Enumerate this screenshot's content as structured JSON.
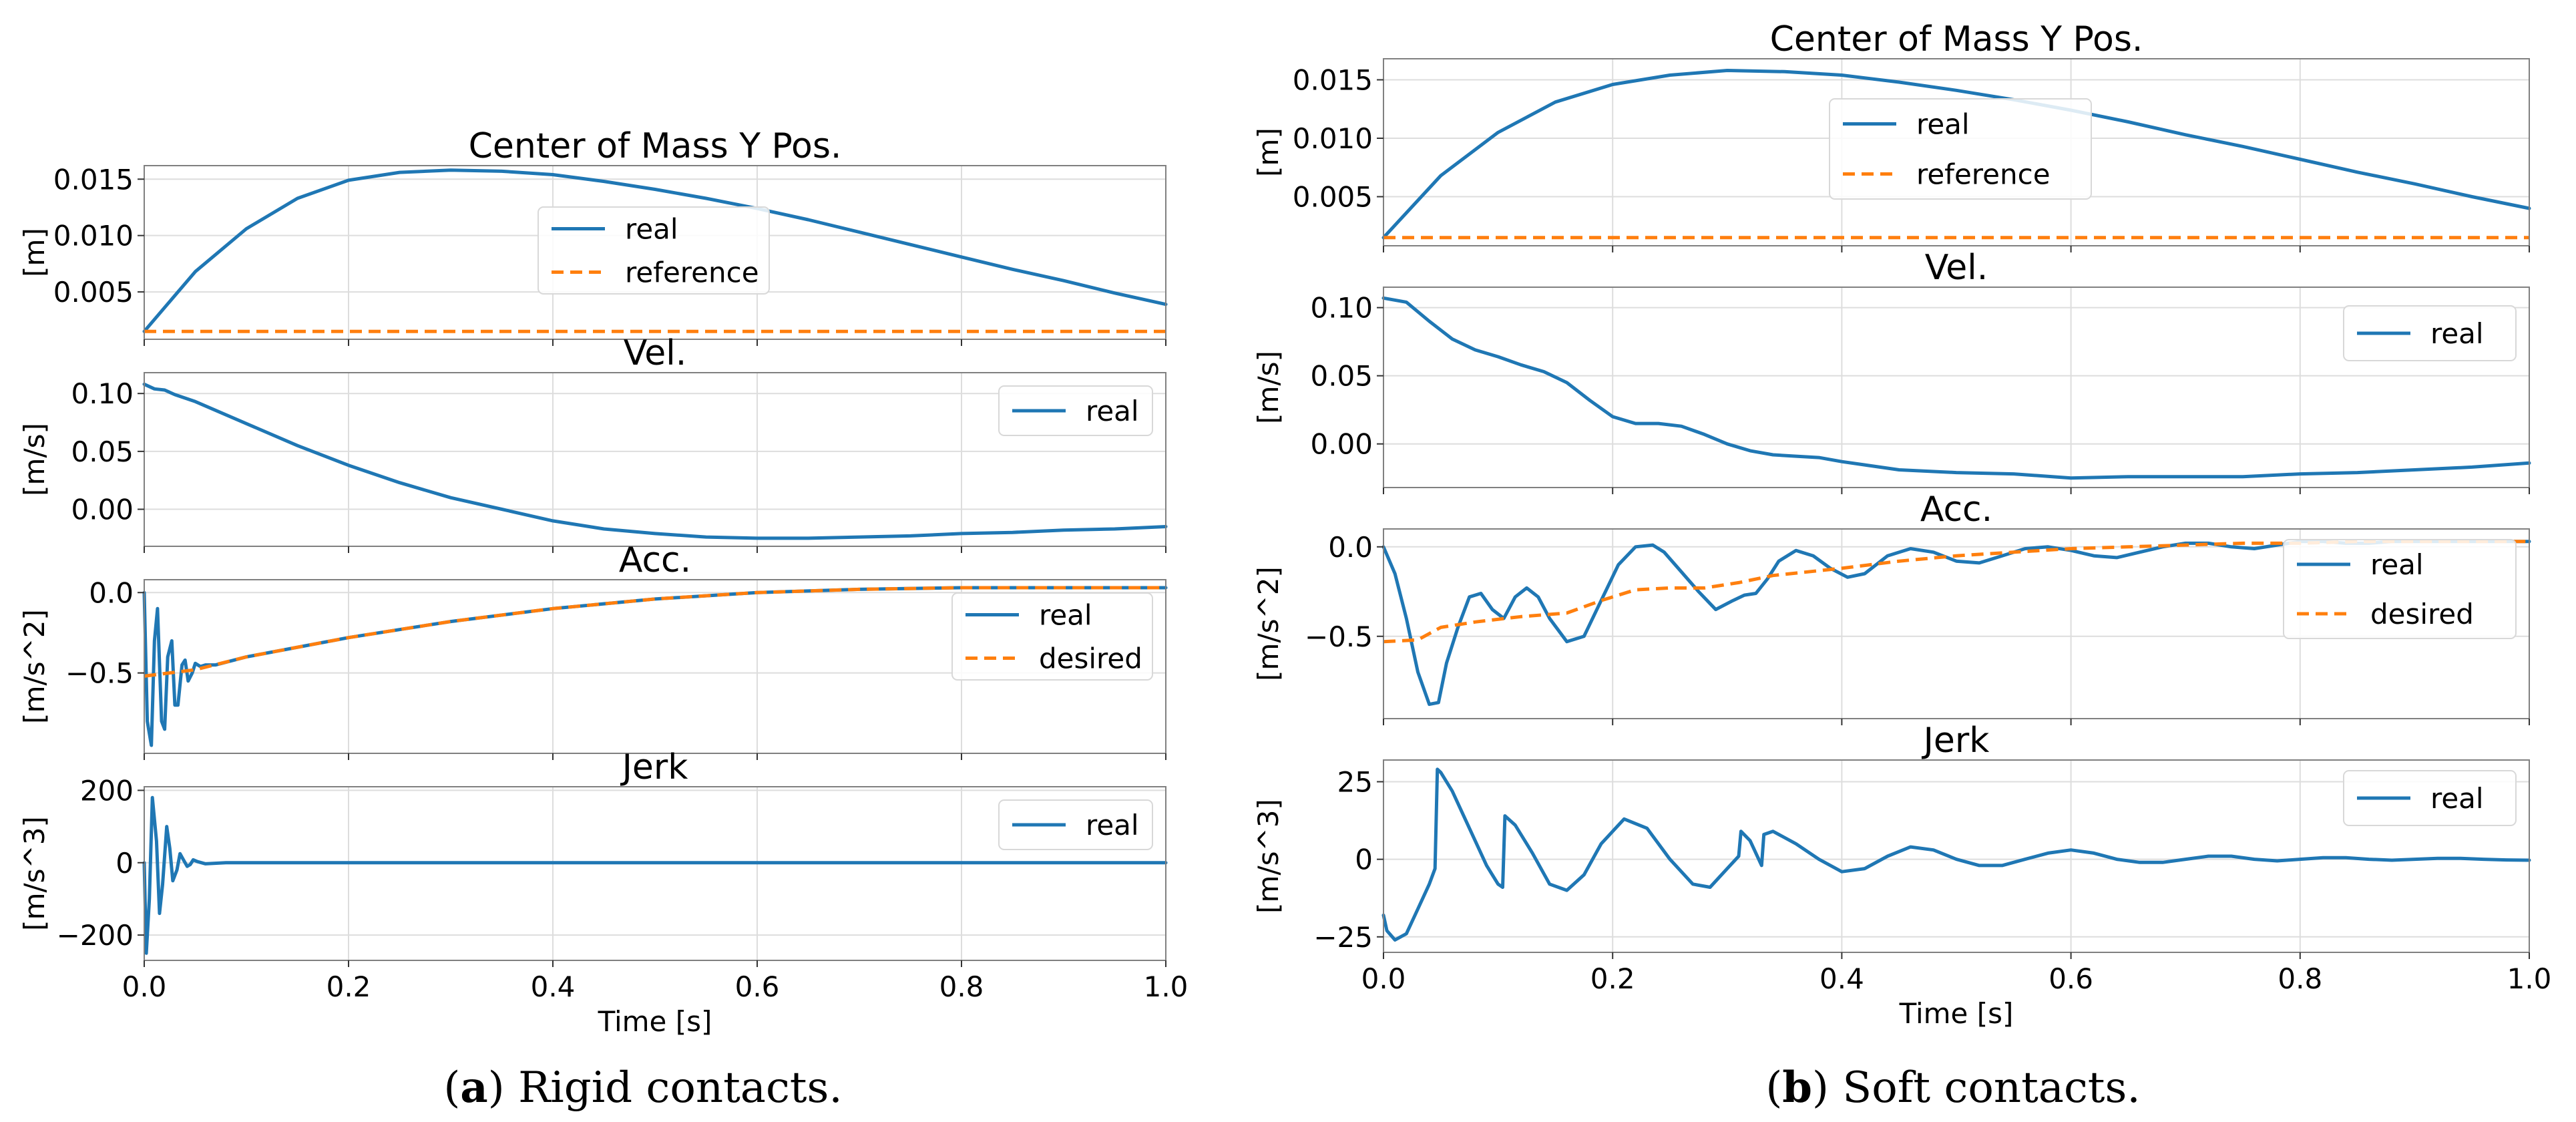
{
  "figure": {
    "caption_a_letter": "a",
    "caption_a_text": " Rigid contacts.",
    "caption_b_letter": "b",
    "caption_b_text": " Soft contacts."
  },
  "colors": {
    "real": "#1f77b4",
    "reference": "#ff7f0e",
    "grid": "#dddddd",
    "axis": "#808080"
  },
  "chart_data": [
    {
      "id": "a-pos",
      "type": "line",
      "title": "Center of Mass Y Pos.",
      "ylabel": "[m]",
      "xlabel": "",
      "xlim": [
        0,
        1.0
      ],
      "ylim": [
        0.0008,
        0.0162
      ],
      "yticks": [
        0.005,
        0.01,
        0.015
      ],
      "ytick_labels": [
        "0.005",
        "0.010",
        "0.015"
      ],
      "xticks": [
        0,
        0.2,
        0.4,
        0.6,
        0.8,
        1.0
      ],
      "xtick_labels": [],
      "legend": "center",
      "grid": true,
      "series": [
        {
          "name": "real",
          "style": "solid",
          "x": [
            0,
            0.05,
            0.1,
            0.15,
            0.2,
            0.25,
            0.3,
            0.35,
            0.4,
            0.45,
            0.5,
            0.55,
            0.6,
            0.65,
            0.7,
            0.75,
            0.8,
            0.85,
            0.9,
            0.95,
            1.0
          ],
          "y": [
            0.0015,
            0.0068,
            0.0106,
            0.0133,
            0.0149,
            0.0156,
            0.0158,
            0.0157,
            0.0154,
            0.0148,
            0.0141,
            0.0133,
            0.0124,
            0.0114,
            0.0103,
            0.0092,
            0.0081,
            0.007,
            0.006,
            0.0049,
            0.0039
          ]
        },
        {
          "name": "reference",
          "style": "dashed",
          "x": [
            0,
            1.0
          ],
          "y": [
            0.0015,
            0.0015
          ]
        }
      ]
    },
    {
      "id": "a-vel",
      "type": "line",
      "title": "Vel.",
      "ylabel": "[m/s]",
      "xlabel": "",
      "xlim": [
        0,
        1.0
      ],
      "ylim": [
        -0.032,
        0.118
      ],
      "yticks": [
        0.0,
        0.05,
        0.1
      ],
      "ytick_labels": [
        "0.00",
        "0.05",
        "0.10"
      ],
      "xticks": [
        0,
        0.2,
        0.4,
        0.6,
        0.8,
        1.0
      ],
      "xtick_labels": [],
      "legend": "top-right",
      "grid": true,
      "series": [
        {
          "name": "real",
          "style": "solid",
          "x": [
            0,
            0.01,
            0.02,
            0.03,
            0.05,
            0.1,
            0.15,
            0.2,
            0.25,
            0.3,
            0.35,
            0.4,
            0.45,
            0.5,
            0.55,
            0.6,
            0.65,
            0.7,
            0.75,
            0.8,
            0.85,
            0.9,
            0.95,
            1.0
          ],
          "y": [
            0.108,
            0.104,
            0.103,
            0.099,
            0.093,
            0.074,
            0.055,
            0.038,
            0.023,
            0.01,
            0.0,
            -0.01,
            -0.017,
            -0.021,
            -0.024,
            -0.025,
            -0.025,
            -0.024,
            -0.023,
            -0.021,
            -0.02,
            -0.018,
            -0.017,
            -0.015
          ]
        }
      ]
    },
    {
      "id": "a-acc",
      "type": "line",
      "title": "Acc.",
      "ylabel": "[m/s^2]",
      "xlabel": "",
      "xlim": [
        0,
        1.0
      ],
      "ylim": [
        -1.0,
        0.08
      ],
      "yticks": [
        -0.5,
        0.0
      ],
      "ytick_labels": [
        "−0.5",
        "0.0"
      ],
      "xticks": [
        0,
        0.2,
        0.4,
        0.6,
        0.8,
        1.0
      ],
      "xtick_labels": [],
      "legend": "right",
      "grid": true,
      "series": [
        {
          "name": "real",
          "style": "solid",
          "x": [
            0,
            0.003,
            0.007,
            0.01,
            0.013,
            0.017,
            0.02,
            0.023,
            0.027,
            0.03,
            0.033,
            0.037,
            0.04,
            0.043,
            0.047,
            0.05,
            0.055,
            0.06,
            0.07,
            0.1,
            0.2,
            0.3,
            0.4,
            0.5,
            0.6,
            0.7,
            0.8,
            0.9,
            1.0
          ],
          "y": [
            0.0,
            -0.8,
            -0.95,
            -0.3,
            -0.1,
            -0.8,
            -0.85,
            -0.4,
            -0.3,
            -0.7,
            -0.7,
            -0.45,
            -0.42,
            -0.55,
            -0.5,
            -0.44,
            -0.46,
            -0.45,
            -0.45,
            -0.4,
            -0.28,
            -0.18,
            -0.1,
            -0.04,
            0.0,
            0.02,
            0.03,
            0.03,
            0.03
          ]
        },
        {
          "name": "desired",
          "style": "dashed",
          "x": [
            0,
            0.05,
            0.1,
            0.2,
            0.3,
            0.4,
            0.5,
            0.6,
            0.7,
            0.8,
            0.9,
            1.0
          ],
          "y": [
            -0.52,
            -0.48,
            -0.4,
            -0.28,
            -0.18,
            -0.1,
            -0.04,
            0.0,
            0.02,
            0.03,
            0.03,
            0.03
          ]
        }
      ]
    },
    {
      "id": "a-jerk",
      "type": "line",
      "title": "Jerk",
      "ylabel": "[m/s^3]",
      "xlabel": "Time [s]",
      "xlim": [
        0,
        1.0
      ],
      "ylim": [
        -270,
        210
      ],
      "yticks": [
        -200,
        0,
        200
      ],
      "ytick_labels": [
        "−200",
        "0",
        "200"
      ],
      "xticks": [
        0,
        0.2,
        0.4,
        0.6,
        0.8,
        1.0
      ],
      "xtick_labels": [
        "0.0",
        "0.2",
        "0.4",
        "0.6",
        "0.8",
        "1.0"
      ],
      "legend": "top-right",
      "grid": true,
      "series": [
        {
          "name": "real",
          "style": "solid",
          "x": [
            0,
            0.002,
            0.005,
            0.008,
            0.012,
            0.015,
            0.018,
            0.022,
            0.025,
            0.028,
            0.032,
            0.035,
            0.038,
            0.042,
            0.045,
            0.048,
            0.052,
            0.06,
            0.08,
            1.0
          ],
          "y": [
            0,
            -250,
            -100,
            180,
            60,
            -140,
            -60,
            100,
            40,
            -50,
            -20,
            25,
            10,
            -10,
            -5,
            8,
            3,
            -3,
            0,
            0
          ]
        }
      ]
    },
    {
      "id": "b-pos",
      "type": "line",
      "title": "Center of Mass Y Pos.",
      "ylabel": "[m]",
      "xlabel": "",
      "xlim": [
        0,
        1.0
      ],
      "ylim": [
        0.0008,
        0.0168
      ],
      "yticks": [
        0.005,
        0.01,
        0.015
      ],
      "ytick_labels": [
        "0.005",
        "0.010",
        "0.015"
      ],
      "xticks": [
        0,
        0.2,
        0.4,
        0.6,
        0.8,
        1.0
      ],
      "xtick_labels": [],
      "legend": "center",
      "grid": true,
      "series": [
        {
          "name": "real",
          "style": "solid",
          "x": [
            0,
            0.05,
            0.1,
            0.15,
            0.2,
            0.25,
            0.3,
            0.35,
            0.4,
            0.45,
            0.5,
            0.55,
            0.6,
            0.65,
            0.7,
            0.75,
            0.8,
            0.85,
            0.9,
            0.95,
            1.0
          ],
          "y": [
            0.0015,
            0.0068,
            0.0105,
            0.0131,
            0.0146,
            0.0154,
            0.0158,
            0.0157,
            0.0154,
            0.0148,
            0.0141,
            0.0133,
            0.0124,
            0.0114,
            0.0103,
            0.0093,
            0.0082,
            0.0071,
            0.0061,
            0.005,
            0.004
          ]
        },
        {
          "name": "reference",
          "style": "dashed",
          "x": [
            0,
            1.0
          ],
          "y": [
            0.0015,
            0.0015
          ]
        }
      ]
    },
    {
      "id": "b-vel",
      "type": "line",
      "title": "Vel.",
      "ylabel": "[m/s]",
      "xlabel": "",
      "xlim": [
        0,
        1.0
      ],
      "ylim": [
        -0.032,
        0.115
      ],
      "yticks": [
        0.0,
        0.05,
        0.1
      ],
      "ytick_labels": [
        "0.00",
        "0.05",
        "0.10"
      ],
      "xticks": [
        0,
        0.2,
        0.4,
        0.6,
        0.8,
        1.0
      ],
      "xtick_labels": [],
      "legend": "top-right",
      "grid": true,
      "series": [
        {
          "name": "real",
          "style": "solid",
          "x": [
            0,
            0.02,
            0.04,
            0.06,
            0.08,
            0.1,
            0.12,
            0.14,
            0.16,
            0.18,
            0.2,
            0.22,
            0.24,
            0.26,
            0.28,
            0.3,
            0.32,
            0.34,
            0.36,
            0.38,
            0.4,
            0.45,
            0.5,
            0.55,
            0.6,
            0.65,
            0.7,
            0.75,
            0.8,
            0.85,
            0.9,
            0.95,
            1.0
          ],
          "y": [
            0.107,
            0.104,
            0.09,
            0.077,
            0.069,
            0.064,
            0.058,
            0.053,
            0.045,
            0.032,
            0.02,
            0.015,
            0.015,
            0.013,
            0.007,
            0.0,
            -0.005,
            -0.008,
            -0.009,
            -0.01,
            -0.013,
            -0.019,
            -0.021,
            -0.022,
            -0.025,
            -0.024,
            -0.024,
            -0.024,
            -0.022,
            -0.021,
            -0.019,
            -0.017,
            -0.014
          ]
        }
      ]
    },
    {
      "id": "b-acc",
      "type": "line",
      "title": "Acc.",
      "ylabel": "[m/s^2]",
      "xlabel": "",
      "xlim": [
        0,
        1.0
      ],
      "ylim": [
        -0.96,
        0.1
      ],
      "yticks": [
        -0.5,
        0.0
      ],
      "ytick_labels": [
        "−0.5",
        "0.0"
      ],
      "xticks": [
        0,
        0.2,
        0.4,
        0.6,
        0.8,
        1.0
      ],
      "xtick_labels": [],
      "legend": "right",
      "grid": true,
      "series": [
        {
          "name": "real",
          "style": "solid",
          "x": [
            0,
            0.01,
            0.02,
            0.03,
            0.04,
            0.048,
            0.055,
            0.065,
            0.075,
            0.085,
            0.095,
            0.105,
            0.115,
            0.125,
            0.135,
            0.145,
            0.16,
            0.175,
            0.19,
            0.205,
            0.22,
            0.235,
            0.245,
            0.26,
            0.275,
            0.29,
            0.305,
            0.315,
            0.325,
            0.335,
            0.345,
            0.36,
            0.375,
            0.39,
            0.405,
            0.42,
            0.44,
            0.46,
            0.48,
            0.5,
            0.52,
            0.54,
            0.56,
            0.58,
            0.6,
            0.62,
            0.64,
            0.66,
            0.68,
            0.7,
            0.72,
            0.74,
            0.76,
            0.78,
            0.8,
            0.82,
            0.84,
            0.86,
            0.88,
            0.9,
            0.92,
            0.94,
            0.96,
            0.98,
            1.0
          ],
          "y": [
            0.0,
            -0.15,
            -0.4,
            -0.7,
            -0.88,
            -0.87,
            -0.65,
            -0.45,
            -0.28,
            -0.26,
            -0.35,
            -0.4,
            -0.28,
            -0.23,
            -0.28,
            -0.4,
            -0.53,
            -0.5,
            -0.3,
            -0.1,
            0.0,
            0.01,
            -0.03,
            -0.14,
            -0.25,
            -0.35,
            -0.3,
            -0.27,
            -0.26,
            -0.18,
            -0.08,
            -0.02,
            -0.05,
            -0.12,
            -0.17,
            -0.15,
            -0.05,
            -0.01,
            -0.03,
            -0.08,
            -0.09,
            -0.05,
            -0.01,
            0.0,
            -0.02,
            -0.05,
            -0.06,
            -0.03,
            0.0,
            0.02,
            0.02,
            0.0,
            -0.01,
            0.01,
            0.03,
            0.03,
            0.02,
            0.02,
            0.03,
            0.03,
            0.03,
            0.03,
            0.03,
            0.03,
            0.03
          ]
        },
        {
          "name": "desired",
          "style": "dashed",
          "x": [
            0,
            0.03,
            0.05,
            0.08,
            0.12,
            0.16,
            0.19,
            0.22,
            0.25,
            0.28,
            0.31,
            0.34,
            0.37,
            0.4,
            0.45,
            0.5,
            0.55,
            0.6,
            0.65,
            0.7,
            0.75,
            0.8,
            0.85,
            0.9,
            0.95,
            1.0
          ],
          "y": [
            -0.53,
            -0.52,
            -0.45,
            -0.42,
            -0.39,
            -0.37,
            -0.3,
            -0.24,
            -0.23,
            -0.23,
            -0.2,
            -0.16,
            -0.14,
            -0.12,
            -0.08,
            -0.05,
            -0.03,
            -0.01,
            0.0,
            0.01,
            0.02,
            0.02,
            0.03,
            0.03,
            0.03,
            0.03
          ]
        }
      ]
    },
    {
      "id": "b-jerk",
      "type": "line",
      "title": "Jerk",
      "ylabel": "[m/s^3]",
      "xlabel": "Time [s]",
      "xlim": [
        0,
        1.0
      ],
      "ylim": [
        -30,
        32
      ],
      "yticks": [
        -25,
        0,
        25
      ],
      "ytick_labels": [
        "−25",
        "0",
        "25"
      ],
      "xticks": [
        0,
        0.2,
        0.4,
        0.6,
        0.8,
        1.0
      ],
      "xtick_labels": [
        "0.0",
        "0.2",
        "0.4",
        "0.6",
        "0.8",
        "1.0"
      ],
      "legend": "top-right",
      "grid": true,
      "series": [
        {
          "name": "real",
          "style": "solid",
          "x": [
            0,
            0.003,
            0.01,
            0.02,
            0.03,
            0.04,
            0.045,
            0.047,
            0.05,
            0.06,
            0.07,
            0.08,
            0.09,
            0.1,
            0.104,
            0.106,
            0.115,
            0.13,
            0.145,
            0.16,
            0.175,
            0.19,
            0.21,
            0.23,
            0.25,
            0.27,
            0.285,
            0.3,
            0.31,
            0.312,
            0.32,
            0.33,
            0.332,
            0.34,
            0.36,
            0.38,
            0.4,
            0.42,
            0.44,
            0.46,
            0.48,
            0.5,
            0.52,
            0.54,
            0.56,
            0.58,
            0.6,
            0.62,
            0.64,
            0.66,
            0.68,
            0.7,
            0.72,
            0.74,
            0.76,
            0.78,
            0.8,
            0.82,
            0.84,
            0.86,
            0.88,
            0.9,
            0.92,
            0.94,
            0.96,
            0.98,
            1.0
          ],
          "y": [
            -18,
            -23,
            -26,
            -24,
            -16,
            -8,
            -3,
            29,
            28,
            22,
            14,
            6,
            -2,
            -8,
            -9,
            14,
            11,
            2,
            -8,
            -10,
            -5,
            5,
            13,
            10,
            0,
            -8,
            -9,
            -3,
            1,
            9,
            6,
            -2,
            8,
            9,
            5,
            0,
            -4,
            -3,
            1,
            4,
            3,
            0,
            -2,
            -2,
            0,
            2,
            3,
            2,
            0,
            -1,
            -1,
            0,
            1,
            1,
            0,
            -0.5,
            0,
            0.5,
            0.5,
            0,
            -0.3,
            0,
            0.3,
            0.3,
            0,
            -0.2,
            -0.3
          ]
        }
      ]
    }
  ]
}
